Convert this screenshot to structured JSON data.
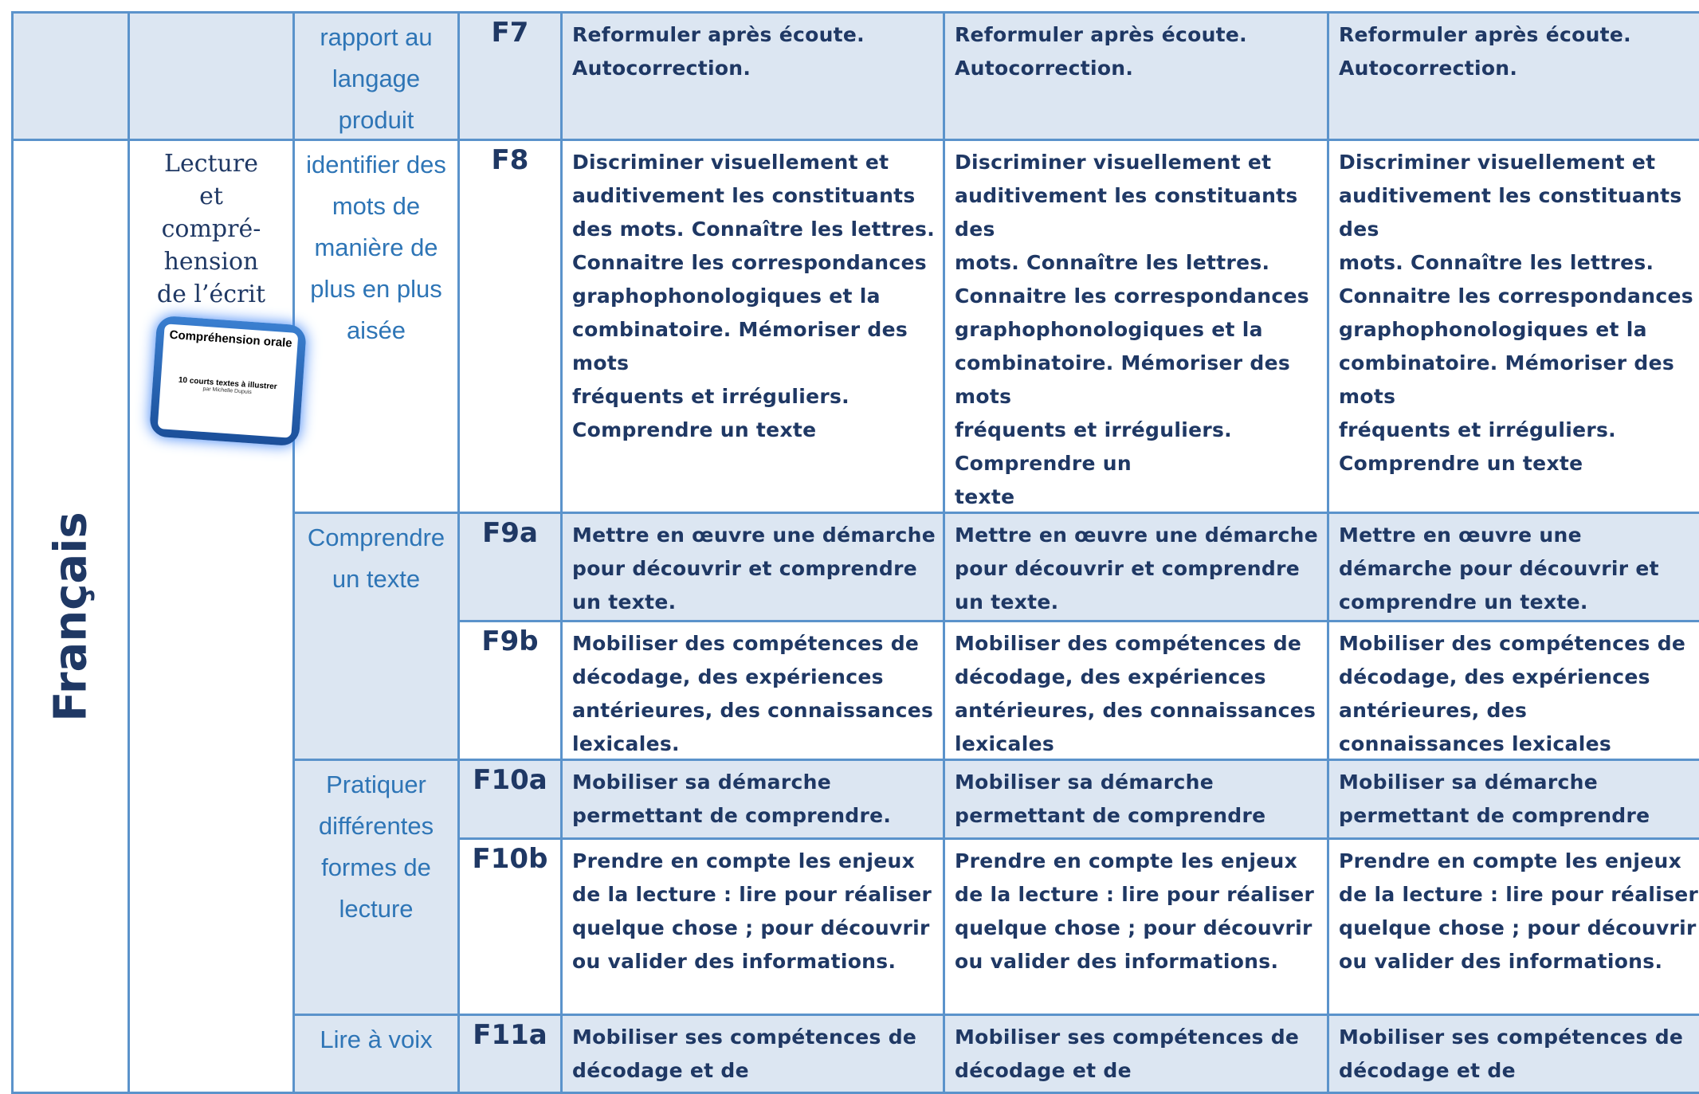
{
  "table": {
    "subject": "Français",
    "domain": {
      "lines": [
        "Lecture",
        "et",
        "compré-",
        "hension",
        "de l’écrit"
      ]
    },
    "book": {
      "title": "Compréhension orale",
      "subtitle": "10 courts textes à illustrer",
      "author": "par Michelle Dupuis"
    },
    "subdomains": [
      "rapport au langage produit",
      "identifier des mots de manière de plus en plus aisée",
      "Comprendre un texte",
      "Pratiquer différentes formes de lecture",
      "Lire à voix"
    ],
    "rows": [
      {
        "code": "F7",
        "cells": [
          "Reformuler après écoute.\nAutocorrection.",
          "Reformuler après écoute.\nAutocorrection.",
          "Reformuler après écoute.\nAutocorrection."
        ]
      },
      {
        "code": "F8",
        "cells": [
          "Discriminer visuellement et auditivement les constituants des mots. Connaître les lettres. Connaitre les correspondances graphophonologiques et la combinatoire. Mémoriser des mots\nfréquents et irréguliers.\nComprendre un texte",
          "Discriminer visuellement et auditivement les constituants des\nmots. Connaître les lettres. Connaitre les correspondances graphophonologiques et la combinatoire. Mémoriser des mots\nfréquents et irréguliers.\nComprendre un\ntexte",
          "Discriminer visuellement et auditivement les constituants des\nmots. Connaître les lettres. Connaitre les correspondances graphophonologiques et la combinatoire. Mémoriser des mots\nfréquents et irréguliers.\nComprendre un texte"
        ]
      },
      {
        "code": "F9a",
        "cells": [
          "Mettre en œuvre une démarche pour découvrir et comprendre un texte.",
          "Mettre en œuvre une démarche pour découvrir et comprendre un texte.",
          "Mettre en œuvre une démarche pour découvrir et comprendre un texte."
        ]
      },
      {
        "code": "F9b",
        "cells": [
          "Mobiliser des compétences de décodage, des expériences antérieures, des connaissances lexicales.",
          "Mobiliser des compétences de décodage, des expériences antérieures, des connaissances lexicales",
          "Mobiliser des compétences de décodage, des expériences antérieures, des connaissances lexicales"
        ]
      },
      {
        "code": "F10a",
        "cells": [
          "Mobiliser sa démarche permettant de comprendre.",
          "Mobiliser sa démarche permettant de comprendre",
          "Mobiliser sa démarche permettant de comprendre"
        ]
      },
      {
        "code": "F10b",
        "cells": [
          "Prendre en compte les enjeux de la lecture : lire pour réaliser quelque chose ; pour découvrir ou valider des informations.",
          "Prendre en compte les enjeux de la lecture : lire pour réaliser quelque chose ; pour découvrir ou valider des informations.",
          "Prendre en compte les enjeux de la lecture : lire pour réaliser quelque chose ; pour découvrir ou valider des informations."
        ]
      },
      {
        "code": "F11a",
        "cells": [
          "Mobiliser ses compétences de décodage et de compréhension.",
          "Mobiliser ses compétences de décodage et de compréhension.",
          "Mobiliser ses compétences de décodage et de compréhension."
        ]
      }
    ]
  }
}
